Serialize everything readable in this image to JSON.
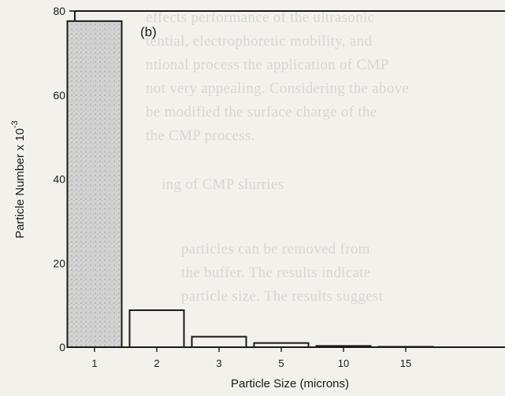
{
  "chart_data": {
    "type": "bar",
    "panel_label": "(b)",
    "xlabel": "Particle Size (microns)",
    "ylabel": "Particle Number x 10",
    "ylabel_exponent": "-3",
    "categories": [
      "1",
      "2",
      "3",
      "5",
      "10",
      "15"
    ],
    "values": [
      77.6,
      8.8,
      2.5,
      1.0,
      0.3,
      0.1
    ],
    "ylim": [
      0,
      80
    ],
    "yticks": [
      "0",
      "20",
      "40",
      "60",
      "80"
    ],
    "grid": false,
    "legend": "none",
    "bar_fill": "#cfcfcf",
    "bar_stroke": "#1a1a1a"
  },
  "bleed_through": [
    "effects performance of the ultrasonic",
    "tential, electrophoretic mobility, and",
    "ntional process the application of CMP",
    "not very appealing. Considering the above",
    "be modified the surface charge of the",
    "the CMP process.",
    "ing of CMP slurries",
    "particles can be removed from",
    "the buffer. The results indicate",
    "particle size. The results suggest"
  ]
}
